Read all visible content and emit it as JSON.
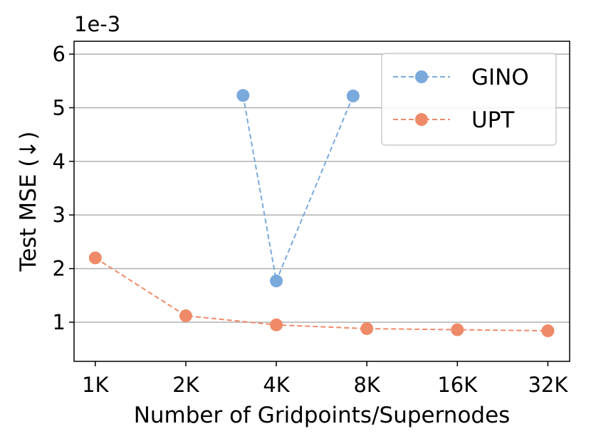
{
  "chart_data": {
    "type": "line",
    "x_label": "Number of Gridpoints/Supernodes",
    "y_label": "Test MSE (↓)",
    "y_offset_label": "1e-3",
    "xscale": "log",
    "xlim": [
      850,
      37800
    ],
    "xticks": [
      {
        "value": 1000,
        "label": "1K"
      },
      {
        "value": 2000,
        "label": "2K"
      },
      {
        "value": 4000,
        "label": "4K"
      },
      {
        "value": 8000,
        "label": "8K"
      },
      {
        "value": 16000,
        "label": "16K"
      },
      {
        "value": 32000,
        "label": "32K"
      }
    ],
    "ylim": [
      0.27,
      6.24
    ],
    "yticks": [
      1,
      2,
      3,
      4,
      5,
      6
    ],
    "grid": true,
    "legend": "upper right",
    "series": [
      {
        "name": "GINO",
        "color": "#7aa9dc",
        "x": [
          3100,
          4000,
          7200
        ],
        "values": [
          5.23,
          1.77,
          5.22
        ]
      },
      {
        "name": "UPT",
        "color": "#ef8a68",
        "x": [
          1000,
          2000,
          4000,
          8000,
          16000,
          32000
        ],
        "values": [
          2.2,
          1.12,
          0.95,
          0.88,
          0.86,
          0.84
        ]
      }
    ]
  }
}
